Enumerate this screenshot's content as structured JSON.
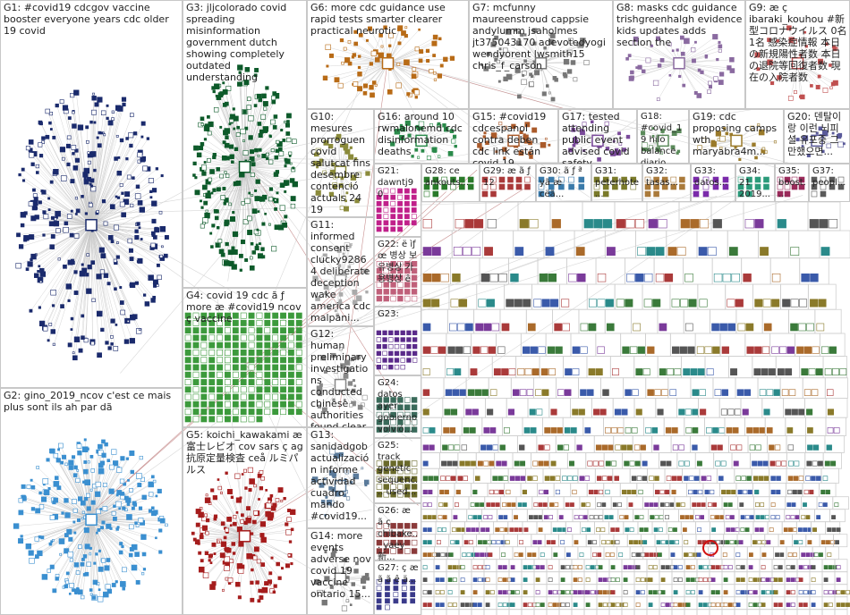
{
  "groups": [
    {
      "label": "G1: #covid19 cdcgov vaccine booster everyone years cdc older 19 covid"
    },
    {
      "label": "G2: gino_2019_ncov c'est ce mais plus sont ils ah par dã"
    },
    {
      "label": "G3: jljcolorado covid spreading misinformation government dutch showing completely outdated understanding"
    },
    {
      "label": "G4: covid 19 cdc ã ƒ more æ #covid19 ncov ç vaccine"
    },
    {
      "label": "G5: koichi_kawakami æ 富士レビオ cov sars ç ag 抗原定量検査 ceå ルミパルス"
    },
    {
      "label": "G6: more cdc guidance use rapid tests smarter clearer practical neurotic"
    },
    {
      "label": "G7: mcfunny maureenstroud cappsie andylumm jsaholmes jt375043170 adevotedyogi wendyorent lwsmith15 chris_f_carson"
    },
    {
      "label": "G8: masks cdc guidance trishgreenhalgh evidence kids updates adds section the"
    },
    {
      "label": "G9: æ ç ibaraki_kouhou #新型コロナウイルス 0名 1名 感染症情報 本日の新規陽性者数 本日の退院等回復者数 現在の入院者数"
    },
    {
      "label": "G10: mesures prorroguen covid salutcat fins desembre contenció actuals 24 19"
    },
    {
      "label": "G11: informed consent clucky92864 deliberate deception wake america cdc malpani..."
    },
    {
      "label": "G12: human preliminary investigations conducted chinese authorities found clear evidence..."
    },
    {
      "label": "G13: sanidadgob actualización informe actividad cuadro mando #covid19..."
    },
    {
      "label": "G14: more events adverse nov covid 19 vaccine ontario 15..."
    },
    {
      "label": "G16: around 10 rwmalonemd cdc disinformation deaths"
    },
    {
      "label": "G15: #covid19 cdcespanol contra deben cdc link están covid 19"
    },
    {
      "label": "G17: tested attending public event advised covid safety..."
    },
    {
      "label": "G18: #covid_19 hilo balance diario diciembre ministerio..."
    },
    {
      "label": "G19: cdc proposing camps wth maryabra4m..."
    },
    {
      "label": "G20: 덴탈이 랑 이런 뇌피셜 유포중 그만했으면..."
    },
    {
      "label": "G21: dawntj90"
    },
    {
      "label": "G22: ë ìƒ œ 병상 보유병상 가용병상 ê"
    },
    {
      "label": "G23:"
    },
    {
      "label": "G24: datos ayer gobierno volvió..."
    },
    {
      "label": "G25: track genetic sequenc... used..."
    },
    {
      "label": "G26: æ ã ç chibake... yaey 新..."
    },
    {
      "label": "G27: ç æ ã ã ê ä..."
    },
    {
      "label": "G28: ce ankouts..."
    },
    {
      "label": "G29: æ ã ƒ 12"
    },
    {
      "label": "G30: ã ƒ ª yã æ cëã..."
    },
    {
      "label": "G31: peterhote..."
    },
    {
      "label": "G32: tasas..."
    },
    {
      "label": "G33: datos..."
    },
    {
      "label": "G34: 21 2019..."
    },
    {
      "label": "G35: boost..."
    },
    {
      "label": "G37: peopl..."
    }
  ]
}
